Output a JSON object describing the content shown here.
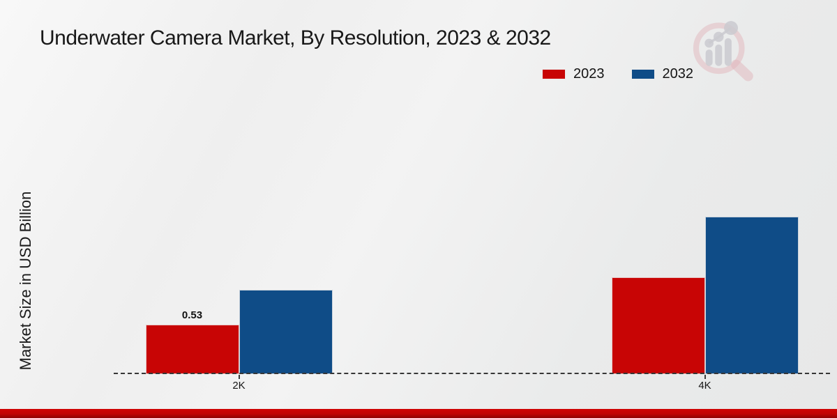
{
  "title": "Underwater Camera Market, By Resolution, 2023 & 2032",
  "ylabel": "Market Size in USD Billion",
  "legend": {
    "items": [
      {
        "label": "2023",
        "color": "#c80505"
      },
      {
        "label": "2032",
        "color": "#0f4c87"
      }
    ]
  },
  "accent_colors": {
    "series_2023": "#c80505",
    "series_2032": "#0f4c87",
    "footer_band": "#c00202",
    "baseline": "#363636"
  },
  "logo_icon": "magnifier-bar-chart-watermark",
  "chart_data": {
    "type": "bar",
    "title": "Underwater Camera Market, By Resolution, 2023 & 2032",
    "xlabel": "",
    "ylabel": "Market Size in USD Billion",
    "categories": [
      "2K",
      "4K"
    ],
    "series": [
      {
        "name": "2023",
        "color": "#c80505",
        "values": [
          0.53,
          1.04
        ]
      },
      {
        "name": "2032",
        "color": "#0f4c87",
        "values": [
          0.9,
          1.69
        ]
      }
    ],
    "value_labels": [
      [
        "0.53",
        ""
      ],
      [
        "",
        ""
      ]
    ],
    "ylim": [
      0,
      2.2
    ],
    "grid": false,
    "legend_position": "top-right",
    "baseline_style": "dashed",
    "y_axis_ticks_visible": false
  }
}
